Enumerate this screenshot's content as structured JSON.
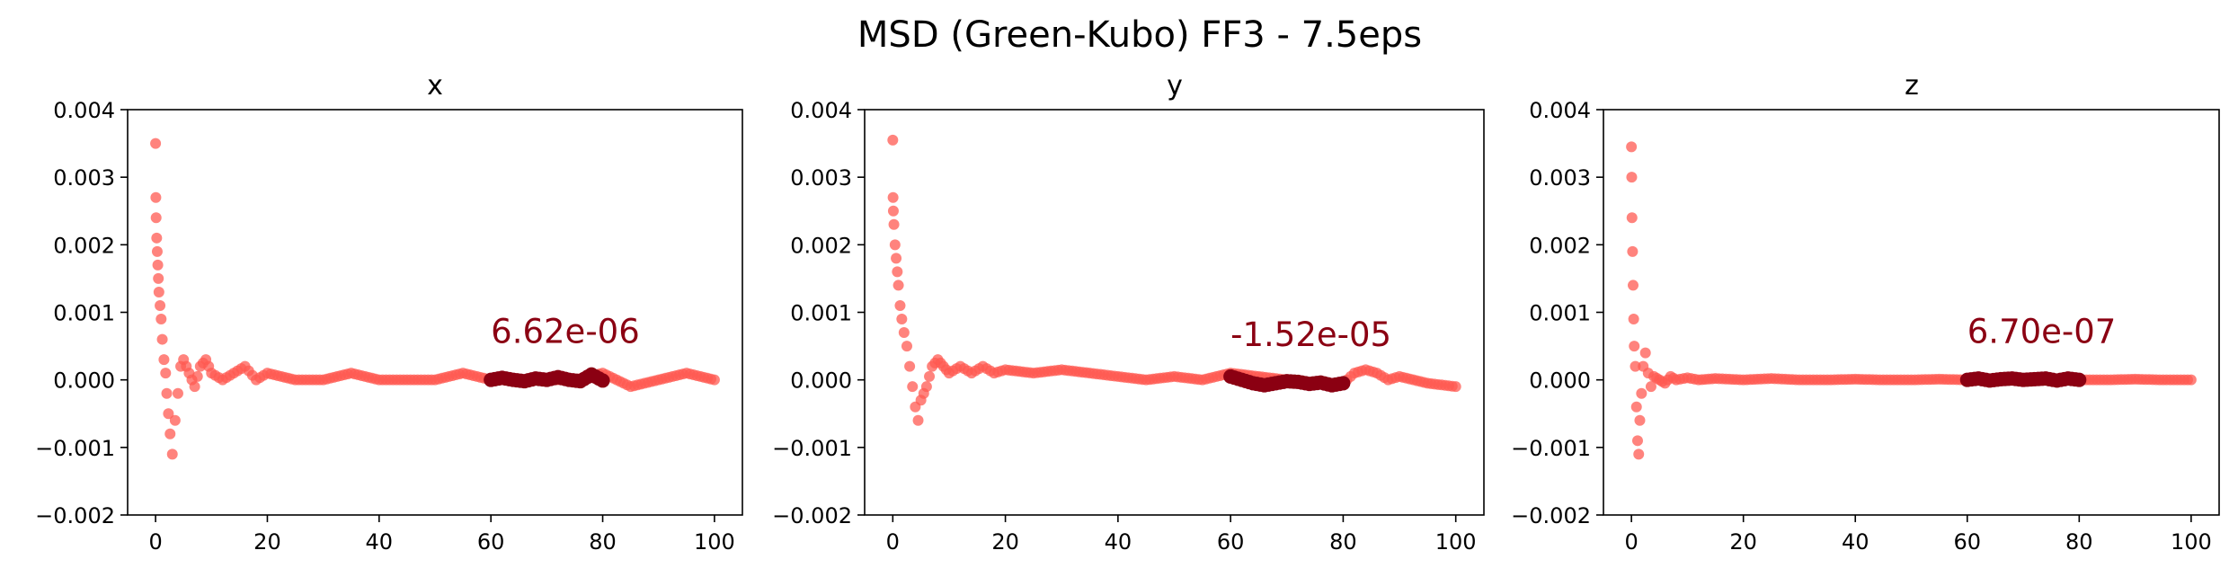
{
  "figure": {
    "title": "MSD (Green-Kubo) FF3 - 7.5eps"
  },
  "colors": {
    "scatter": "#FF5A52",
    "highlight": "#8B0012",
    "annotation": "#8B0012",
    "axis": "#000000"
  },
  "chart_data": [
    {
      "type": "scatter",
      "title": "x",
      "xlabel": "",
      "ylabel": "",
      "xlim": [
        -5,
        105
      ],
      "ylim": [
        -0.002,
        0.004
      ],
      "xticks": [
        0,
        20,
        40,
        60,
        80,
        100
      ],
      "xtick_labels": [
        "0",
        "20",
        "40",
        "60",
        "80",
        "100"
      ],
      "yticks": [
        -0.002,
        -0.001,
        0.0,
        0.001,
        0.002,
        0.003,
        0.004
      ],
      "ytick_labels": [
        "−0.002",
        "−0.001",
        "0.000",
        "0.001",
        "0.002",
        "0.003",
        "0.004"
      ],
      "grid": false,
      "series": [
        {
          "x": [
            0,
            0.05,
            0.1,
            0.2,
            0.3,
            0.4,
            0.5,
            0.6,
            0.8,
            1.0,
            1.2,
            1.5,
            1.8,
            2.0,
            2.3,
            2.6,
            3.0,
            3.5,
            4.0,
            4.5,
            5,
            6,
            7,
            8,
            9,
            10,
            12,
            14,
            16,
            18,
            20,
            25,
            30,
            35,
            40,
            45,
            50,
            55,
            60,
            65,
            70,
            75,
            80,
            85,
            90,
            95,
            100
          ],
          "y": [
            0.0035,
            0.0027,
            0.0024,
            0.0021,
            0.0019,
            0.0017,
            0.0015,
            0.0013,
            0.0011,
            0.0009,
            0.0006,
            0.0003,
            0.0001,
            -0.0002,
            -0.0005,
            -0.0008,
            -0.0011,
            -0.0006,
            -0.0002,
            0.0002,
            0.0003,
            0.0001,
            -0.0001,
            0.0002,
            0.0003,
            0.0001,
            0.0,
            0.0001,
            0.0002,
            0.0,
            0.0001,
            0.0,
            0.0,
            0.0001,
            0.0,
            0.0,
            0.0,
            0.0001,
            0.0,
            0.0,
            0.0,
            0.0,
            0.0001,
            -0.0001,
            0.0,
            0.0001,
            0.0
          ]
        },
        {
          "x": [
            60,
            62,
            64,
            66,
            68,
            70,
            72,
            74,
            76,
            78,
            80
          ],
          "y": [
            0.0,
            3e-05,
            0.0,
            -2e-05,
            2e-05,
            0.0,
            4e-05,
            0.0,
            -2e-05,
            8e-05,
            -1e-05
          ]
        }
      ],
      "annotation": {
        "text": "6.62e-06",
        "x": 60,
        "y": 0.00055
      }
    },
    {
      "type": "scatter",
      "title": "y",
      "xlabel": "",
      "ylabel": "",
      "xlim": [
        -5,
        105
      ],
      "ylim": [
        -0.002,
        0.004
      ],
      "xticks": [
        0,
        20,
        40,
        60,
        80,
        100
      ],
      "xtick_labels": [
        "0",
        "20",
        "40",
        "60",
        "80",
        "100"
      ],
      "yticks": [
        -0.002,
        -0.001,
        0.0,
        0.001,
        0.002,
        0.003,
        0.004
      ],
      "ytick_labels": [
        "−0.002",
        "−0.001",
        "0.000",
        "0.001",
        "0.002",
        "0.003",
        "0.004"
      ],
      "grid": false,
      "series": [
        {
          "x": [
            0,
            0.05,
            0.1,
            0.2,
            0.4,
            0.6,
            0.8,
            1.0,
            1.3,
            1.6,
            2.0,
            2.5,
            3.0,
            3.5,
            4.0,
            4.5,
            5,
            6,
            7,
            8,
            9,
            10,
            12,
            14,
            16,
            18,
            20,
            25,
            30,
            35,
            40,
            45,
            50,
            55,
            60,
            65,
            70,
            75,
            80,
            82,
            84,
            86,
            88,
            90,
            95,
            100
          ],
          "y": [
            0.00355,
            0.0027,
            0.0025,
            0.0023,
            0.002,
            0.0018,
            0.0016,
            0.0014,
            0.0011,
            0.0009,
            0.0007,
            0.0005,
            0.0002,
            -0.0001,
            -0.0004,
            -0.0006,
            -0.0003,
            -0.0001,
            0.0002,
            0.0003,
            0.0002,
            0.0001,
            0.0002,
            0.0001,
            0.0002,
            0.0001,
            0.00015,
            0.0001,
            0.00015,
            0.0001,
            5e-05,
            0.0,
            5e-05,
            0.0,
            0.0001,
            5e-05,
            0.0,
            -5e-05,
            -5e-05,
            0.0001,
            0.00015,
            0.0001,
            0.0,
            5e-05,
            -5e-05,
            -0.0001
          ]
        },
        {
          "x": [
            60,
            62,
            64,
            66,
            68,
            70,
            72,
            74,
            76,
            78,
            80
          ],
          "y": [
            5e-05,
            0.0,
            -5e-05,
            -8e-05,
            -5e-05,
            -2e-05,
            -3e-05,
            -6e-05,
            -4e-05,
            -8e-05,
            -5e-05
          ]
        }
      ],
      "annotation": {
        "text": "-1.52e-05",
        "x": 60,
        "y": 0.0005
      }
    },
    {
      "type": "scatter",
      "title": "z",
      "xlabel": "",
      "ylabel": "",
      "xlim": [
        -5,
        105
      ],
      "ylim": [
        -0.002,
        0.004
      ],
      "xticks": [
        0,
        20,
        40,
        60,
        80,
        100
      ],
      "xtick_labels": [
        "0",
        "20",
        "40",
        "60",
        "80",
        "100"
      ],
      "yticks": [
        -0.002,
        -0.001,
        0.0,
        0.001,
        0.002,
        0.003,
        0.004
      ],
      "ytick_labels": [
        "−0.002",
        "−0.001",
        "0.000",
        "0.001",
        "0.002",
        "0.003",
        "0.004"
      ],
      "grid": false,
      "series": [
        {
          "x": [
            0,
            0.05,
            0.1,
            0.2,
            0.3,
            0.4,
            0.5,
            0.7,
            0.9,
            1.1,
            1.3,
            1.5,
            1.8,
            2.1,
            2.5,
            3.0,
            3.5,
            4.0,
            5,
            6,
            7,
            8,
            10,
            12,
            15,
            20,
            25,
            30,
            35,
            40,
            45,
            50,
            55,
            60,
            65,
            70,
            75,
            80,
            85,
            90,
            95,
            100
          ],
          "y": [
            0.00345,
            0.003,
            0.0024,
            0.0019,
            0.0014,
            0.0009,
            0.0005,
            0.0002,
            -0.0004,
            -0.0009,
            -0.0011,
            -0.0006,
            -0.0002,
            0.0002,
            0.0004,
            0.0001,
            -0.0001,
            5e-05,
            0.0,
            -5e-05,
            5e-05,
            0.0,
            3e-05,
            0.0,
            2e-05,
            0.0,
            2e-05,
            0.0,
            0.0,
            1e-05,
            0.0,
            0.0,
            1e-05,
            0.0,
            0.0,
            0.0,
            0.0,
            0.0,
            0.0,
            1e-05,
            0.0,
            0.0
          ]
        },
        {
          "x": [
            60,
            62,
            64,
            66,
            68,
            70,
            72,
            74,
            76,
            78,
            80
          ],
          "y": [
            0.0,
            2e-05,
            -1e-05,
            1e-05,
            2e-05,
            0.0,
            1e-05,
            2e-05,
            -1e-05,
            2e-05,
            0.0
          ]
        }
      ],
      "annotation": {
        "text": "6.70e-07",
        "x": 60,
        "y": 0.00055
      }
    }
  ]
}
